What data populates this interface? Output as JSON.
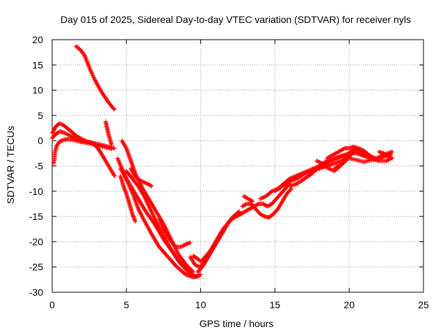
{
  "chart_data": {
    "type": "scatter",
    "title": "Day 015 of 2025, Sidereal Day-to-day VTEC variation (SDTVAR) for receiver nyls",
    "xlabel": "GPS time / hours",
    "ylabel": "SDTVAR / TECUs",
    "xlim": [
      0,
      25
    ],
    "ylim": [
      -30,
      20
    ],
    "xticks": [
      0,
      5,
      10,
      15,
      20,
      25
    ],
    "yticks": [
      20,
      15,
      10,
      5,
      0,
      -5,
      -10,
      -15,
      -20,
      -25,
      -30
    ],
    "grid": true,
    "marker": "+",
    "legend": "none",
    "series_color": "#ff0000",
    "series": [
      {
        "name": "track-1",
        "x": [
          0.0,
          0.1,
          0.2,
          0.3,
          0.5,
          0.7,
          1.0,
          1.3,
          1.6,
          2.0,
          2.4,
          2.8,
          3.2,
          3.6,
          4.0
        ],
        "y": [
          1.5,
          2.0,
          2.6,
          3.0,
          3.4,
          3.2,
          2.5,
          1.8,
          1.0,
          0.3,
          -0.2,
          -0.5,
          -1.0,
          -1.3,
          -1.6
        ]
      },
      {
        "name": "track-2",
        "x": [
          0.0,
          0.2,
          0.5,
          0.8,
          1.2,
          1.6,
          2.0,
          2.5,
          3.0,
          3.4,
          3.8,
          4.2
        ],
        "y": [
          0.5,
          1.2,
          1.8,
          1.6,
          1.0,
          0.5,
          0.0,
          -0.4,
          -0.6,
          -0.9,
          -1.2,
          -1.5
        ]
      },
      {
        "name": "track-3",
        "x": [
          0.1,
          0.15,
          0.2,
          0.3,
          0.5,
          0.8,
          1.1,
          1.5,
          1.9,
          2.3,
          2.7,
          3.0,
          3.3,
          3.6,
          3.9,
          4.2
        ],
        "y": [
          -4.5,
          -3.5,
          -2.2,
          -1.0,
          -0.2,
          0.2,
          0.3,
          0.1,
          -0.2,
          -0.4,
          -0.6,
          -1.2,
          -2.5,
          -4.0,
          -5.5,
          -7.0
        ]
      },
      {
        "name": "track-4",
        "x": [
          1.6,
          1.9,
          2.2,
          2.5,
          2.8,
          3.1,
          3.4,
          3.7,
          4.0,
          4.2
        ],
        "y": [
          18.7,
          18.0,
          16.8,
          14.5,
          12.5,
          10.8,
          9.3,
          8.0,
          6.8,
          6.2
        ]
      },
      {
        "name": "track-5",
        "x": [
          3.6,
          3.7,
          3.8,
          3.9,
          4.0
        ],
        "y": [
          3.8,
          2.5,
          1.2,
          0.2,
          -0.8
        ]
      },
      {
        "name": "track-6",
        "x": [
          4.4,
          4.7,
          5.0,
          5.4,
          5.8,
          6.3,
          6.9,
          7.5,
          8.1,
          8.7,
          9.2,
          9.6,
          10.0
        ],
        "y": [
          -3.5,
          -5.5,
          -7.5,
          -9.5,
          -11.5,
          -14.0,
          -16.5,
          -19.5,
          -22.0,
          -24.5,
          -26.0,
          -26.9,
          -26.5
        ]
      },
      {
        "name": "track-7",
        "x": [
          4.6,
          4.9,
          5.2,
          5.5,
          5.8,
          6.2,
          6.7,
          7.2,
          7.8,
          8.4,
          9.0,
          9.5,
          9.9
        ],
        "y": [
          -5.5,
          -7.0,
          -9.0,
          -11.0,
          -13.5,
          -15.8,
          -18.5,
          -21.0,
          -23.0,
          -25.0,
          -26.5,
          -27.0,
          -26.8
        ]
      },
      {
        "name": "track-8",
        "x": [
          4.6,
          4.8,
          5.0,
          5.2,
          5.4,
          5.6
        ],
        "y": [
          -7.0,
          -9.0,
          -10.5,
          -12.5,
          -14.5,
          -16.0
        ]
      },
      {
        "name": "track-9",
        "x": [
          4.7,
          5.0,
          5.3,
          5.6,
          6.0,
          6.5,
          7.0,
          7.5,
          8.0,
          8.5,
          9.0,
          9.5
        ],
        "y": [
          0.0,
          -1.5,
          -4.0,
          -6.5,
          -9.0,
          -11.5,
          -14.0,
          -16.5,
          -19.5,
          -22.5,
          -24.5,
          -26.0
        ]
      },
      {
        "name": "track-10",
        "x": [
          5.0,
          5.4,
          5.8,
          6.2,
          6.6,
          7.0,
          7.5,
          8.0,
          8.5,
          9.0,
          9.5
        ],
        "y": [
          -6.0,
          -7.5,
          -9.0,
          -11.0,
          -13.5,
          -16.0,
          -18.8,
          -21.5,
          -23.8,
          -25.5,
          -26.5
        ]
      },
      {
        "name": "track-11",
        "x": [
          5.3,
          5.6,
          6.0,
          6.4,
          6.7
        ],
        "y": [
          -5.5,
          -7.2,
          -8.0,
          -8.5,
          -9.0
        ]
      },
      {
        "name": "track-12",
        "x": [
          7.2,
          7.5,
          7.9,
          8.3,
          8.7,
          9.0,
          9.3
        ],
        "y": [
          -15.5,
          -17.5,
          -19.5,
          -21.0,
          -21.0,
          -20.5,
          -20.2
        ]
      },
      {
        "name": "track-13",
        "x": [
          9.3,
          9.6,
          9.9,
          10.2,
          10.5,
          10.8,
          11.1,
          11.4,
          11.8,
          12.2,
          12.6
        ],
        "y": [
          -23.0,
          -24.5,
          -25.0,
          -24.5,
          -23.0,
          -21.5,
          -20.0,
          -18.5,
          -16.5,
          -15.0,
          -14.0
        ]
      },
      {
        "name": "track-14",
        "x": [
          9.8,
          10.1,
          10.4,
          10.7,
          11.0,
          11.3,
          11.6,
          11.9,
          12.2
        ],
        "y": [
          -26.0,
          -25.0,
          -23.5,
          -22.0,
          -20.5,
          -19.0,
          -17.5,
          -16.0,
          -15.0
        ]
      },
      {
        "name": "track-15",
        "x": [
          10.0,
          10.3,
          10.6,
          10.9,
          11.2,
          11.5,
          11.8,
          12.1,
          12.4,
          12.7
        ],
        "y": [
          -24.0,
          -23.0,
          -22.0,
          -20.5,
          -19.0,
          -17.5,
          -16.5,
          -15.5,
          -15.0,
          -14.5
        ]
      },
      {
        "name": "track-16",
        "x": [
          9.5,
          9.7,
          9.9
        ],
        "y": [
          -22.8,
          -23.2,
          -23.6
        ]
      },
      {
        "name": "track-17",
        "x": [
          12.7,
          13.0,
          13.3,
          13.6,
          13.9,
          14.2,
          14.5,
          14.8,
          15.1,
          15.4,
          15.7,
          16.0
        ],
        "y": [
          -14.5,
          -14.0,
          -13.5,
          -13.0,
          -12.5,
          -12.5,
          -13.0,
          -12.5,
          -11.5,
          -10.5,
          -9.5,
          -8.5
        ]
      },
      {
        "name": "track-18",
        "x": [
          12.8,
          13.1,
          13.4,
          13.7,
          14.0,
          14.3,
          14.6,
          14.9,
          15.2,
          15.5,
          15.8,
          16.1
        ],
        "y": [
          -13.0,
          -12.5,
          -12.5,
          -13.5,
          -14.5,
          -15.0,
          -15.2,
          -14.5,
          -13.5,
          -12.0,
          -10.5,
          -9.5
        ]
      },
      {
        "name": "track-19",
        "x": [
          12.9,
          13.2,
          13.5
        ],
        "y": [
          -11.0,
          -11.5,
          -12.0
        ]
      },
      {
        "name": "track-20",
        "x": [
          14.0,
          14.4,
          14.8,
          15.2,
          15.6,
          16.0,
          16.4,
          16.8,
          17.2,
          17.6,
          18.0,
          18.4,
          18.8,
          19.2,
          19.6
        ],
        "y": [
          -11.5,
          -11.0,
          -10.0,
          -9.5,
          -8.5,
          -7.5,
          -7.0,
          -6.5,
          -6.0,
          -5.5,
          -5.0,
          -4.5,
          -4.0,
          -3.5,
          -3.0
        ]
      },
      {
        "name": "track-21",
        "x": [
          15.0,
          15.5,
          16.0,
          16.5,
          17.0,
          17.5,
          18.0,
          18.5,
          19.0,
          19.5,
          20.0,
          20.5,
          21.0,
          21.5,
          22.0,
          22.5,
          22.8
        ],
        "y": [
          -10.0,
          -9.0,
          -8.0,
          -7.5,
          -6.5,
          -6.0,
          -5.5,
          -5.0,
          -4.5,
          -4.0,
          -3.5,
          -3.8,
          -4.2,
          -3.8,
          -3.5,
          -3.0,
          -2.8
        ]
      },
      {
        "name": "track-22",
        "x": [
          16.0,
          16.5,
          17.0,
          17.5,
          18.0,
          18.5,
          19.0,
          19.5,
          20.0,
          20.5,
          21.0,
          21.5,
          22.0,
          22.5,
          22.8
        ],
        "y": [
          -9.0,
          -8.5,
          -7.5,
          -6.5,
          -5.0,
          -4.0,
          -3.5,
          -3.0,
          -2.5,
          -2.5,
          -3.0,
          -3.5,
          -4.0,
          -4.0,
          -3.5
        ]
      },
      {
        "name": "track-23",
        "x": [
          17.8,
          18.2,
          18.6,
          19.0,
          19.4,
          19.8,
          20.2,
          20.6,
          21.0,
          21.4,
          21.8,
          22.2,
          22.6,
          22.9
        ],
        "y": [
          -4.0,
          -4.5,
          -5.5,
          -6.0,
          -5.0,
          -3.0,
          -2.0,
          -1.5,
          -2.0,
          -3.0,
          -3.5,
          -3.0,
          -2.5,
          -2.2
        ]
      },
      {
        "name": "track-24",
        "x": [
          18.5,
          18.8,
          19.1,
          19.4,
          19.7,
          20.0,
          20.3,
          20.6,
          20.9,
          21.2
        ],
        "y": [
          -3.5,
          -3.0,
          -2.5,
          -2.0,
          -1.5,
          -1.5,
          -1.2,
          -1.5,
          -2.0,
          -2.5
        ]
      },
      {
        "name": "track-25",
        "x": [
          19.0,
          19.3,
          19.6,
          19.9,
          20.2,
          20.5,
          20.8,
          21.1
        ],
        "y": [
          -5.5,
          -5.0,
          -4.5,
          -3.5,
          -2.5,
          -2.0,
          -2.5,
          -3.0
        ]
      },
      {
        "name": "track-26",
        "x": [
          22.0,
          22.3,
          22.6,
          22.9
        ],
        "y": [
          -2.2,
          -2.5,
          -3.0,
          -3.5
        ]
      }
    ]
  }
}
